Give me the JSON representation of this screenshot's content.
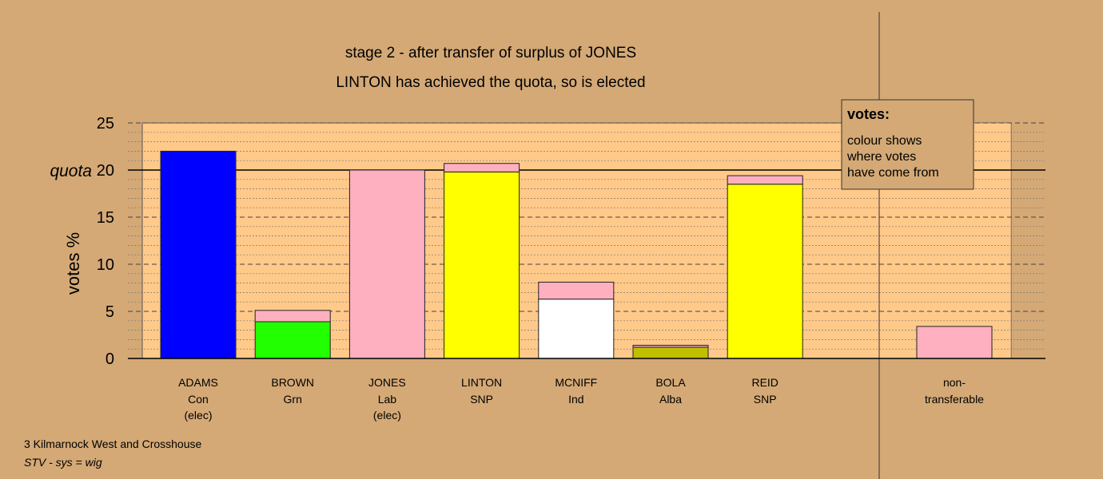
{
  "chart_data": {
    "type": "bar",
    "stacked": true,
    "title": "stage 2 - after transfer of surplus of JONES",
    "subtitle": "LINTON has achieved the quota, so is elected",
    "ylabel": "votes %",
    "ylim": [
      0,
      25
    ],
    "yticks": [
      0,
      5,
      10,
      15,
      20,
      25
    ],
    "quota": 20,
    "quota_label": "quota",
    "candidates": [
      {
        "name": "ADAMS",
        "party": "Con",
        "note": "(elec)",
        "segments": [
          {
            "value": 22.0,
            "color": "#0000ff"
          }
        ]
      },
      {
        "name": "BROWN",
        "party": "Grn",
        "note": "",
        "segments": [
          {
            "value": 3.9,
            "color": "#22ff00"
          },
          {
            "value": 1.2,
            "color": "#ffb0c0"
          }
        ]
      },
      {
        "name": "JONES",
        "party": "Lab",
        "note": "(elec)",
        "segments": [
          {
            "value": 20.0,
            "color": "#ffb0c0"
          }
        ]
      },
      {
        "name": "LINTON",
        "party": "SNP",
        "note": "",
        "segments": [
          {
            "value": 19.8,
            "color": "#ffff00"
          },
          {
            "value": 0.9,
            "color": "#ffb0c0"
          }
        ]
      },
      {
        "name": "MCNIFF",
        "party": "Ind",
        "note": "",
        "segments": [
          {
            "value": 6.3,
            "color": "#ffffff"
          },
          {
            "value": 1.8,
            "color": "#ffb0c0"
          }
        ]
      },
      {
        "name": "BOLA",
        "party": "Alba",
        "note": "",
        "segments": [
          {
            "value": 1.2,
            "color": "#c0c000"
          },
          {
            "value": 0.2,
            "color": "#ffb0c0"
          }
        ]
      },
      {
        "name": "REID",
        "party": "SNP",
        "note": "",
        "segments": [
          {
            "value": 18.5,
            "color": "#ffff00"
          },
          {
            "value": 0.9,
            "color": "#ffb0c0"
          }
        ]
      }
    ],
    "nontransferable": {
      "label_line1": "non-",
      "label_line2": "transferable",
      "value": 3.4,
      "color": "#ffb0c0"
    },
    "legend": {
      "title": "votes:",
      "lines": [
        "colour shows",
        "where votes",
        "have come from"
      ],
      "position": "top-right"
    },
    "colors": {
      "page_background": "#d4a976",
      "plot_background": "#ffc98a"
    }
  },
  "footer": {
    "ward": "3 Kilmarnock West and Crosshouse",
    "system": "STV - sys = wig"
  }
}
